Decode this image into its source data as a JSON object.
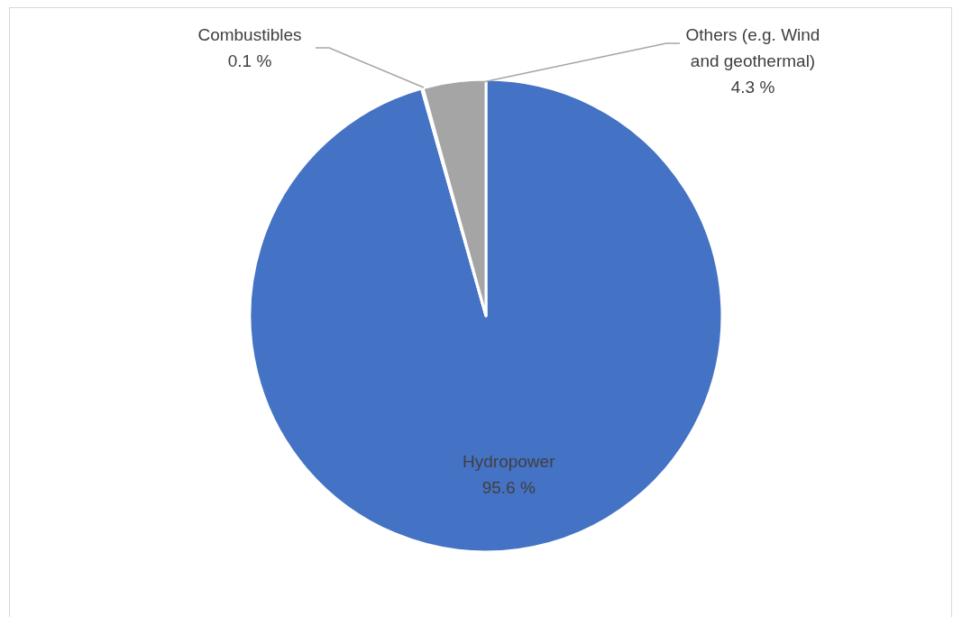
{
  "chart_data": {
    "type": "pie",
    "categories": [
      "Hydropower",
      "Combustibles",
      "Others (e.g. Wind and geothermal)"
    ],
    "values": [
      95.6,
      0.1,
      4.3
    ],
    "colors": [
      "#4472c4",
      "#ed7d31",
      "#a5a5a5"
    ],
    "value_labels": [
      "95.6 %",
      "0.1 %",
      "4.3 %"
    ]
  }
}
